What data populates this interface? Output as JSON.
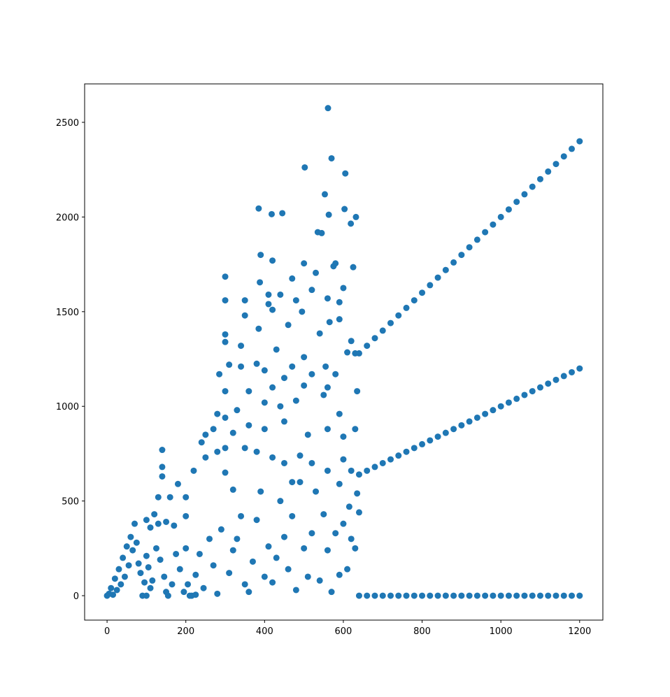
{
  "chart_data": {
    "type": "scatter",
    "color": "#1f77b4",
    "x": [
      561,
      570,
      502,
      605,
      553,
      385,
      418,
      445,
      563,
      603,
      619,
      632,
      535,
      545,
      390,
      420,
      300,
      388,
      500,
      575,
      625,
      580,
      470,
      530,
      410,
      440,
      350,
      300,
      520,
      600,
      410,
      480,
      495,
      350,
      590,
      560,
      565,
      590,
      420,
      385,
      460,
      540,
      300,
      500,
      300,
      340,
      380,
      430,
      620,
      610,
      630,
      555,
      580,
      470,
      285,
      340,
      310,
      400,
      450,
      520,
      635,
      300,
      360,
      420,
      500,
      560,
      590,
      330,
      280,
      400,
      440,
      480,
      550,
      300,
      360,
      270,
      250,
      320,
      400,
      450,
      510,
      560,
      600,
      630,
      240,
      280,
      300,
      350,
      380,
      420,
      450,
      490,
      520,
      560,
      600,
      620,
      250,
      220,
      180,
      200,
      160,
      140,
      140,
      140,
      130,
      120,
      100,
      110,
      130,
      150,
      170,
      200,
      70,
      60,
      50,
      40,
      30,
      20,
      10,
      5,
      0,
      15,
      25,
      35,
      45,
      55,
      65,
      75,
      80,
      85,
      90,
      95,
      100,
      105,
      110,
      115,
      125,
      135,
      145,
      155,
      165,
      175,
      185,
      195,
      205,
      215,
      225,
      235,
      245,
      260,
      270,
      280,
      290,
      310,
      320,
      330,
      340,
      350,
      360,
      370,
      380,
      390,
      400,
      410,
      420,
      430,
      440,
      450,
      460,
      470,
      480,
      490,
      500,
      510,
      520,
      530,
      540,
      550,
      560,
      570,
      580,
      590,
      600,
      610,
      620,
      630,
      635,
      640,
      200,
      210,
      225,
      100,
      150,
      300,
      320,
      470,
      590,
      615,
      640,
      660,
      680,
      700,
      720,
      740,
      760,
      780,
      800,
      820,
      840,
      860,
      880,
      900,
      920,
      940,
      960,
      980,
      1000,
      1020,
      1040,
      1060,
      1080,
      1100,
      1120,
      1140,
      1160,
      1180,
      1200,
      640,
      660,
      680,
      700,
      720,
      740,
      760,
      780,
      800,
      820,
      840,
      860,
      880,
      900,
      920,
      940,
      960,
      980,
      1000,
      1020,
      1040,
      1060,
      1080,
      1100,
      1120,
      1140,
      1160,
      1180,
      1200,
      640,
      660,
      680,
      700,
      720,
      740,
      760,
      780,
      800,
      820,
      840,
      860,
      880,
      900,
      920,
      940,
      960,
      980,
      1000,
      1020,
      1040,
      1060,
      1080,
      1100,
      1120,
      1140,
      1160,
      1180,
      1200
    ],
    "values": [
      2575,
      2310,
      2262,
      2230,
      2120,
      2045,
      2015,
      2020,
      2012,
      2042,
      1965,
      2000,
      1920,
      1915,
      1800,
      1770,
      1685,
      1655,
      1755,
      1740,
      1735,
      1755,
      1675,
      1705,
      1590,
      1590,
      1560,
      1560,
      1615,
      1625,
      1540,
      1560,
      1500,
      1480,
      1550,
      1570,
      1445,
      1460,
      1510,
      1410,
      1430,
      1385,
      1380,
      1260,
      1340,
      1320,
      1225,
      1300,
      1345,
      1285,
      1280,
      1210,
      1170,
      1210,
      1170,
      1210,
      1220,
      1190,
      1150,
      1170,
      1080,
      1080,
      1080,
      1100,
      1110,
      1100,
      960,
      980,
      960,
      1020,
      1000,
      1030,
      1060,
      940,
      900,
      880,
      850,
      860,
      880,
      920,
      850,
      880,
      840,
      880,
      810,
      760,
      780,
      780,
      760,
      730,
      700,
      740,
      700,
      660,
      720,
      660,
      730,
      660,
      590,
      520,
      520,
      770,
      680,
      630,
      520,
      430,
      400,
      360,
      380,
      390,
      370,
      420,
      380,
      310,
      260,
      200,
      140,
      90,
      40,
      10,
      0,
      5,
      30,
      60,
      100,
      160,
      240,
      280,
      170,
      120,
      0,
      70,
      210,
      150,
      40,
      80,
      250,
      190,
      100,
      0,
      60,
      220,
      140,
      20,
      60,
      0,
      110,
      220,
      40,
      300,
      160,
      10,
      350,
      120,
      240,
      300,
      420,
      60,
      20,
      180,
      400,
      550,
      100,
      260,
      70,
      200,
      500,
      310,
      140,
      420,
      30,
      600,
      250,
      100,
      330,
      550,
      80,
      430,
      240,
      20,
      330,
      110,
      380,
      140,
      300,
      250,
      540,
      440,
      250,
      0,
      5,
      0,
      20,
      650,
      560,
      600,
      590,
      470,
      0,
      0,
      0,
      0,
      0,
      0,
      0,
      0,
      0,
      0,
      0,
      0,
      0,
      0,
      0,
      0,
      0,
      0,
      0,
      0,
      0,
      0,
      0,
      0,
      0,
      0,
      0,
      0,
      0,
      640,
      660,
      680,
      700,
      720,
      740,
      760,
      780,
      800,
      820,
      840,
      860,
      880,
      900,
      920,
      940,
      960,
      980,
      1000,
      1020,
      1040,
      1060,
      1080,
      1100,
      1120,
      1140,
      1160,
      1180,
      1200,
      1280,
      1320,
      1360,
      1400,
      1440,
      1480,
      1520,
      1560,
      1600,
      1640,
      1680,
      1720,
      1760,
      1800,
      1840,
      1880,
      1920,
      1960,
      2000,
      2040,
      2080,
      2120,
      2160,
      2200,
      2240,
      2280,
      2320,
      2360,
      2400
    ],
    "xlim": [
      -57,
      1259
    ],
    "ylim": [
      -129,
      2703
    ],
    "xticks": [
      0,
      200,
      400,
      600,
      800,
      1000,
      1200
    ],
    "yticks": [
      0,
      500,
      1000,
      1500,
      2000,
      2500
    ]
  }
}
